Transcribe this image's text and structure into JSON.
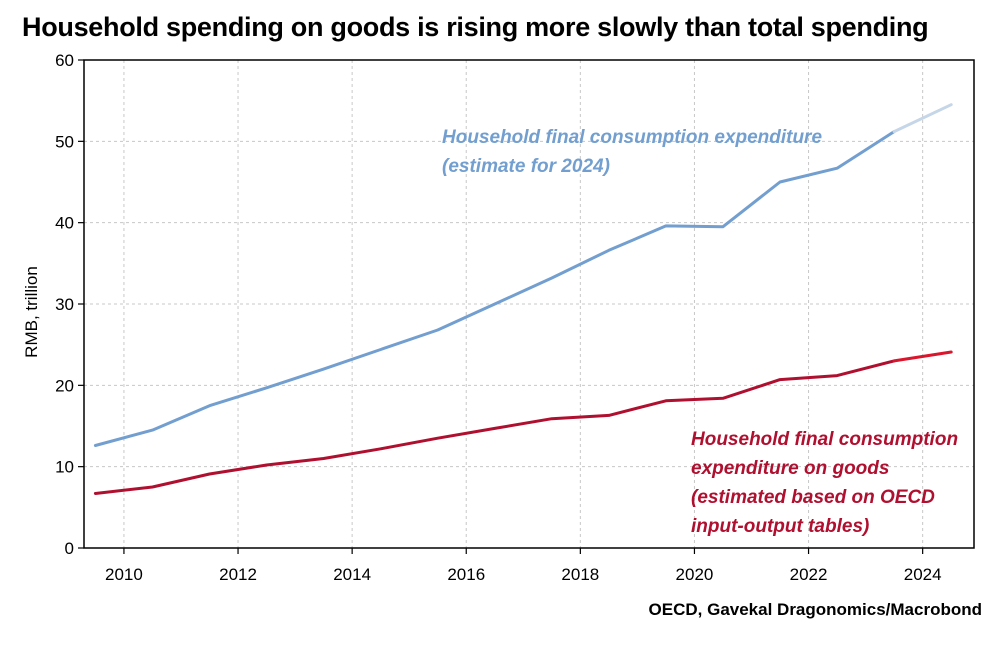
{
  "title": "Household spending on goods is rising more slowly than total spending",
  "source": "OECD, Gavekal Dragonomics/Macrobond",
  "colors": {
    "total": "#729fcf",
    "total_estimate": "#c5d6e8",
    "goods": "#b0102f",
    "goods_estimate": "#d9162c",
    "grid": "#c8c8c8",
    "frame": "#000000"
  },
  "chart_data": {
    "type": "line",
    "title": "Household spending on goods is rising more slowly than total spending",
    "xlabel": "",
    "ylabel": "RMB, trillion",
    "xlim": [
      2009.3,
      2024.9
    ],
    "ylim": [
      0,
      60
    ],
    "x_ticks": [
      2010,
      2012,
      2014,
      2016,
      2018,
      2020,
      2022,
      2024
    ],
    "y_ticks": [
      0,
      10,
      20,
      30,
      40,
      50,
      60
    ],
    "grid": true,
    "series": [
      {
        "name": "Household final consumption expenditure",
        "name_line2": "(estimate for 2024)",
        "x": [
          2009.5,
          2010.5,
          2011.5,
          2012.5,
          2013.5,
          2014.5,
          2015.5,
          2016.5,
          2017.5,
          2018.5,
          2019.5,
          2020.5,
          2021.5,
          2022.5,
          2023.5,
          2024.5
        ],
        "values": [
          12.6,
          14.5,
          17.5,
          19.7,
          22.0,
          24.4,
          26.8,
          30.0,
          33.2,
          36.6,
          39.6,
          39.5,
          45.0,
          46.7,
          51.2,
          54.5
        ],
        "estimate_from_index": 14
      },
      {
        "name": "Household final consumption",
        "name_line2": "expenditure on goods",
        "name_line3": "(estimated based on OECD",
        "name_line4": "input-output tables)",
        "x": [
          2009.5,
          2010.5,
          2011.5,
          2012.5,
          2013.5,
          2014.5,
          2015.5,
          2016.5,
          2017.5,
          2018.5,
          2019.5,
          2020.5,
          2021.5,
          2022.5,
          2023.5,
          2024.5
        ],
        "values": [
          6.7,
          7.5,
          9.1,
          10.2,
          11.0,
          12.2,
          13.5,
          14.7,
          15.9,
          16.3,
          18.1,
          18.4,
          20.7,
          21.2,
          23.0,
          24.1
        ],
        "estimate_from_index": 14
      }
    ]
  }
}
